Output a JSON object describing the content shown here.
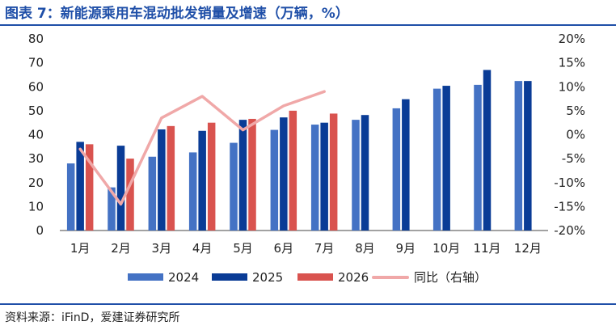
{
  "header": {
    "title": "图表 7：新能源乘用车混动批发销量及增速（万辆，%）"
  },
  "footer": {
    "source": "资料来源：iFinD，爱建证券研究所"
  },
  "colors": {
    "s2024": "#4472c4",
    "s2025": "#0a3c96",
    "s2026": "#d9534f",
    "yoy": "#f0a8a8",
    "accent": "#1f4fa8"
  },
  "chart_data": {
    "type": "bar",
    "categories": [
      "1月",
      "2月",
      "3月",
      "4月",
      "5月",
      "6月",
      "7月",
      "8月",
      "9月",
      "10月",
      "11月",
      "12月"
    ],
    "series": [
      {
        "name": "2024",
        "type": "bar",
        "axis": "left",
        "values": [
          28,
          18,
          30.8,
          32.6,
          36.6,
          42,
          44.2,
          46.2,
          51,
          59.2,
          60.8,
          62.4
        ]
      },
      {
        "name": "2025",
        "type": "bar",
        "axis": "left",
        "values": [
          37,
          35.4,
          42.2,
          41.6,
          46.2,
          47.2,
          45,
          48.2,
          54.8,
          60.4,
          67,
          62.4
        ]
      },
      {
        "name": "2026",
        "type": "bar",
        "axis": "left",
        "values": [
          36,
          30,
          43.6,
          45,
          46.6,
          50,
          48.8,
          null,
          null,
          null,
          null,
          null
        ]
      },
      {
        "name": "同比（右轴）",
        "type": "line",
        "axis": "right",
        "values": [
          -3,
          -14.5,
          3.5,
          8,
          1,
          6,
          9,
          null,
          null,
          null,
          null,
          null
        ]
      }
    ],
    "ylim": [
      0,
      80
    ],
    "yticks": [
      "0",
      "10",
      "20",
      "30",
      "40",
      "50",
      "60",
      "70",
      "80"
    ],
    "y2lim": [
      -20,
      20
    ],
    "y2ticks": [
      "-20%",
      "-15%",
      "-10%",
      "-5%",
      "0%",
      "5%",
      "10%",
      "15%",
      "20%"
    ],
    "legend_position": "bottom",
    "grid": false
  }
}
